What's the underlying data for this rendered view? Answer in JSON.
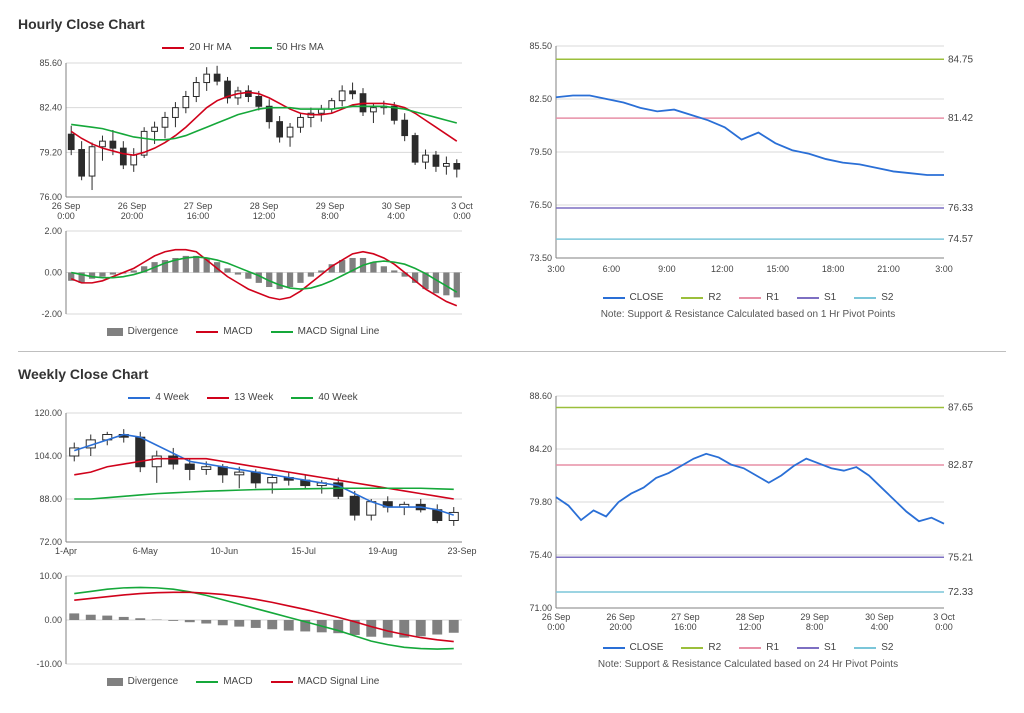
{
  "hourly": {
    "title": "Hourly Close Chart",
    "price": {
      "legend": {
        "ma20": "20 Hr MA",
        "ma50": "50 Hrs MA"
      },
      "ylim": [
        76.0,
        85.6
      ],
      "yticks": [
        "76.00",
        "79.20",
        "82.40",
        "85.60"
      ],
      "xlabels": [
        "26 Sep 0:00",
        "26 Sep 20:00",
        "27 Sep 16:00",
        "28 Sep 12:00",
        "29 Sep 8:00",
        "30 Sep 4:00",
        "3 Oct 0:00"
      ],
      "colors": {
        "candle": "#2b2b2b",
        "ma20": "#d0021b",
        "ma50": "#15a83a",
        "grid": "#d9d9d9",
        "axis": "#808080"
      },
      "candles": [
        {
          "o": 80.5,
          "h": 81.1,
          "l": 79.0,
          "c": 79.4
        },
        {
          "o": 79.4,
          "h": 80.0,
          "l": 77.2,
          "c": 77.5
        },
        {
          "o": 77.5,
          "h": 79.9,
          "l": 76.5,
          "c": 79.6
        },
        {
          "o": 79.6,
          "h": 80.4,
          "l": 78.6,
          "c": 80.0
        },
        {
          "o": 80.0,
          "h": 80.8,
          "l": 79.0,
          "c": 79.5
        },
        {
          "o": 79.5,
          "h": 80.0,
          "l": 78.0,
          "c": 78.3
        },
        {
          "o": 78.3,
          "h": 79.5,
          "l": 77.8,
          "c": 79.0
        },
        {
          "o": 79.0,
          "h": 81.0,
          "l": 78.8,
          "c": 80.7
        },
        {
          "o": 80.7,
          "h": 81.4,
          "l": 79.8,
          "c": 81.0
        },
        {
          "o": 81.0,
          "h": 82.1,
          "l": 80.2,
          "c": 81.7
        },
        {
          "o": 81.7,
          "h": 82.8,
          "l": 81.0,
          "c": 82.4
        },
        {
          "o": 82.4,
          "h": 83.6,
          "l": 82.0,
          "c": 83.2
        },
        {
          "o": 83.2,
          "h": 84.6,
          "l": 82.8,
          "c": 84.2
        },
        {
          "o": 84.2,
          "h": 85.3,
          "l": 83.6,
          "c": 84.8
        },
        {
          "o": 84.8,
          "h": 85.4,
          "l": 84.0,
          "c": 84.3
        },
        {
          "o": 84.3,
          "h": 84.6,
          "l": 82.7,
          "c": 83.1
        },
        {
          "o": 83.1,
          "h": 83.9,
          "l": 82.6,
          "c": 83.6
        },
        {
          "o": 83.6,
          "h": 84.0,
          "l": 82.8,
          "c": 83.2
        },
        {
          "o": 83.2,
          "h": 83.6,
          "l": 82.2,
          "c": 82.5
        },
        {
          "o": 82.5,
          "h": 83.0,
          "l": 80.9,
          "c": 81.4
        },
        {
          "o": 81.4,
          "h": 81.8,
          "l": 79.9,
          "c": 80.3
        },
        {
          "o": 80.3,
          "h": 81.3,
          "l": 79.6,
          "c": 81.0
        },
        {
          "o": 81.0,
          "h": 82.0,
          "l": 80.6,
          "c": 81.7
        },
        {
          "o": 81.7,
          "h": 82.4,
          "l": 81.0,
          "c": 82.0
        },
        {
          "o": 82.0,
          "h": 82.6,
          "l": 81.4,
          "c": 82.3
        },
        {
          "o": 82.3,
          "h": 83.1,
          "l": 82.0,
          "c": 82.9
        },
        {
          "o": 82.9,
          "h": 84.0,
          "l": 82.5,
          "c": 83.6
        },
        {
          "o": 83.6,
          "h": 84.2,
          "l": 83.0,
          "c": 83.4
        },
        {
          "o": 83.4,
          "h": 83.8,
          "l": 81.8,
          "c": 82.1
        },
        {
          "o": 82.1,
          "h": 82.7,
          "l": 81.3,
          "c": 82.4
        },
        {
          "o": 82.4,
          "h": 82.9,
          "l": 81.9,
          "c": 82.5
        },
        {
          "o": 82.5,
          "h": 82.8,
          "l": 81.2,
          "c": 81.5
        },
        {
          "o": 81.5,
          "h": 82.0,
          "l": 80.0,
          "c": 80.4
        },
        {
          "o": 80.4,
          "h": 80.6,
          "l": 78.3,
          "c": 78.5
        },
        {
          "o": 78.5,
          "h": 79.4,
          "l": 78.0,
          "c": 79.0
        },
        {
          "o": 79.0,
          "h": 79.3,
          "l": 77.8,
          "c": 78.2
        },
        {
          "o": 78.2,
          "h": 78.9,
          "l": 77.6,
          "c": 78.4
        },
        {
          "o": 78.4,
          "h": 78.7,
          "l": 77.4,
          "c": 78.0
        }
      ],
      "ma20": [
        80.7,
        80.2,
        79.8,
        79.5,
        79.3,
        79.1,
        79.0,
        79.2,
        79.5,
        79.9,
        80.4,
        81.0,
        81.7,
        82.4,
        82.9,
        83.2,
        83.4,
        83.5,
        83.4,
        83.1,
        82.7,
        82.3,
        82.0,
        81.9,
        81.9,
        82.0,
        82.3,
        82.6,
        82.7,
        82.7,
        82.7,
        82.6,
        82.4,
        82.0,
        81.5,
        81.0,
        80.5,
        80.0
      ],
      "ma50": [
        81.2,
        81.1,
        81.0,
        80.9,
        80.7,
        80.5,
        80.3,
        80.2,
        80.1,
        80.1,
        80.2,
        80.4,
        80.7,
        81.0,
        81.3,
        81.6,
        81.9,
        82.1,
        82.3,
        82.4,
        82.4,
        82.4,
        82.3,
        82.3,
        82.3,
        82.3,
        82.4,
        82.5,
        82.5,
        82.5,
        82.5,
        82.4,
        82.3,
        82.1,
        81.9,
        81.7,
        81.5,
        81.3
      ]
    },
    "macd": {
      "ylim": [
        -2.0,
        2.0
      ],
      "yticks": [
        "-2.00",
        "0.00",
        "2.00"
      ],
      "legend": {
        "div": "Divergence",
        "macd": "MACD",
        "signal": "MACD Signal Line"
      },
      "colors": {
        "div": "#808080",
        "macd": "#d0021b",
        "signal": "#15a83a",
        "grid": "#d9d9d9"
      },
      "hist": [
        -0.4,
        -0.5,
        -0.3,
        -0.2,
        -0.1,
        -0.05,
        0.1,
        0.3,
        0.5,
        0.6,
        0.7,
        0.8,
        0.8,
        0.7,
        0.5,
        0.2,
        -0.1,
        -0.3,
        -0.5,
        -0.7,
        -0.8,
        -0.7,
        -0.5,
        -0.2,
        0.1,
        0.4,
        0.6,
        0.7,
        0.7,
        0.5,
        0.3,
        0.1,
        -0.2,
        -0.5,
        -0.8,
        -1.0,
        -1.1,
        -1.2
      ],
      "macd": [
        -0.3,
        -0.5,
        -0.5,
        -0.4,
        -0.2,
        0.0,
        0.2,
        0.5,
        0.8,
        1.0,
        1.1,
        1.1,
        1.0,
        0.6,
        0.2,
        -0.2,
        -0.5,
        -0.8,
        -1.0,
        -1.2,
        -1.3,
        -1.2,
        -0.9,
        -0.5,
        -0.1,
        0.3,
        0.6,
        0.9,
        1.0,
        0.9,
        0.7,
        0.4,
        0.0,
        -0.4,
        -0.8,
        -1.1,
        -1.4,
        -1.6
      ],
      "signal": [
        0.0,
        -0.1,
        -0.2,
        -0.25,
        -0.25,
        -0.2,
        -0.1,
        0.05,
        0.25,
        0.45,
        0.6,
        0.7,
        0.75,
        0.7,
        0.6,
        0.45,
        0.25,
        0.05,
        -0.15,
        -0.4,
        -0.6,
        -0.75,
        -0.8,
        -0.75,
        -0.6,
        -0.4,
        -0.15,
        0.1,
        0.35,
        0.5,
        0.55,
        0.5,
        0.4,
        0.2,
        -0.05,
        -0.35,
        -0.65,
        -0.95
      ]
    },
    "sr": {
      "ylim": [
        73.5,
        85.5
      ],
      "yticks": [
        "73.50",
        "76.50",
        "79.50",
        "82.50",
        "85.50"
      ],
      "xlabels": [
        "3:00",
        "6:00",
        "9:00",
        "12:00",
        "15:00",
        "18:00",
        "21:00",
        "3:00"
      ],
      "levels": [
        {
          "name": "R2",
          "value": 84.75,
          "color": "#9bbf3b"
        },
        {
          "name": "R1",
          "value": 81.42,
          "color": "#e78fa6"
        },
        {
          "name": "S1",
          "value": 76.33,
          "color": "#7d6fc2"
        },
        {
          "name": "S2",
          "value": 74.57,
          "color": "#7bc6d9"
        }
      ],
      "close_color": "#2a6fd6",
      "close": [
        82.6,
        82.7,
        82.7,
        82.5,
        82.3,
        82.0,
        81.8,
        81.9,
        81.6,
        81.3,
        80.9,
        80.2,
        80.6,
        80.0,
        79.6,
        79.4,
        79.1,
        78.9,
        78.8,
        78.6,
        78.4,
        78.3,
        78.2,
        78.2
      ],
      "legend": {
        "close": "CLOSE",
        "r2": "R2",
        "r1": "R1",
        "s1": "S1",
        "s2": "S2"
      },
      "note": "Note: Support & Resistance Calculated based on 1 Hr Pivot Points"
    }
  },
  "weekly": {
    "title": "Weekly Close Chart",
    "price": {
      "legend": {
        "w4": "4 Week",
        "w13": "13 Week",
        "w40": "40 Week"
      },
      "ylim": [
        72.0,
        120.0
      ],
      "yticks": [
        "72.00",
        "88.00",
        "104.00",
        "120.00"
      ],
      "xlabels": [
        "1-Apr",
        "6-May",
        "10-Jun",
        "15-Jul",
        "19-Aug",
        "23-Sep"
      ],
      "colors": {
        "candle": "#2b2b2b",
        "w4": "#2a6fd6",
        "w13": "#d0021b",
        "w40": "#15a83a",
        "grid": "#d9d9d9"
      },
      "candles": [
        {
          "o": 104,
          "h": 109,
          "l": 102,
          "c": 107
        },
        {
          "o": 107,
          "h": 112,
          "l": 104,
          "c": 110
        },
        {
          "o": 110,
          "h": 113,
          "l": 108,
          "c": 112
        },
        {
          "o": 112,
          "h": 114,
          "l": 109,
          "c": 111
        },
        {
          "o": 111,
          "h": 113,
          "l": 98,
          "c": 100
        },
        {
          "o": 100,
          "h": 106,
          "l": 94,
          "c": 104
        },
        {
          "o": 104,
          "h": 107,
          "l": 99,
          "c": 101
        },
        {
          "o": 101,
          "h": 103,
          "l": 95,
          "c": 99
        },
        {
          "o": 99,
          "h": 102,
          "l": 97,
          "c": 100
        },
        {
          "o": 100,
          "h": 101,
          "l": 94,
          "c": 97
        },
        {
          "o": 97,
          "h": 100,
          "l": 92,
          "c": 98
        },
        {
          "o": 98,
          "h": 99,
          "l": 92,
          "c": 94
        },
        {
          "o": 94,
          "h": 97,
          "l": 90,
          "c": 96
        },
        {
          "o": 96,
          "h": 98,
          "l": 93,
          "c": 95
        },
        {
          "o": 95,
          "h": 97,
          "l": 92,
          "c": 93
        },
        {
          "o": 93,
          "h": 95,
          "l": 90,
          "c": 94
        },
        {
          "o": 94,
          "h": 96,
          "l": 88,
          "c": 89
        },
        {
          "o": 89,
          "h": 91,
          "l": 80,
          "c": 82
        },
        {
          "o": 82,
          "h": 88,
          "l": 80,
          "c": 87
        },
        {
          "o": 87,
          "h": 89,
          "l": 83,
          "c": 85
        },
        {
          "o": 85,
          "h": 87,
          "l": 82,
          "c": 86
        },
        {
          "o": 86,
          "h": 88,
          "l": 83,
          "c": 84
        },
        {
          "o": 84,
          "h": 86,
          "l": 79,
          "c": 80
        },
        {
          "o": 80,
          "h": 85,
          "l": 78,
          "c": 83
        }
      ],
      "w4": [
        106,
        108,
        110,
        112,
        111,
        108,
        105,
        102,
        101,
        100,
        99,
        98,
        97,
        96,
        95,
        94,
        93,
        90,
        87,
        85,
        85,
        85,
        84,
        82
      ],
      "w13": [
        97,
        98,
        100,
        101,
        102,
        103,
        103,
        103,
        103,
        102,
        101,
        100,
        99,
        98,
        97,
        96,
        95,
        94,
        93,
        92,
        91,
        90,
        89,
        88
      ],
      "w40": [
        88,
        88,
        88.5,
        89,
        89.5,
        90,
        90.3,
        90.6,
        90.9,
        91.1,
        91.3,
        91.5,
        91.6,
        91.7,
        91.8,
        91.9,
        92,
        92,
        92,
        92,
        92,
        92,
        91.8,
        91.6
      ]
    },
    "macd": {
      "ylim": [
        -10.0,
        10.0
      ],
      "yticks": [
        "-10.00",
        "0.00",
        "10.00"
      ],
      "legend": {
        "div": "Divergence",
        "macd": "MACD",
        "signal": "MACD Signal Line"
      },
      "colors": {
        "div": "#808080",
        "macd": "#15a83a",
        "signal": "#d0021b"
      },
      "hist": [
        1.5,
        1.2,
        1.0,
        0.7,
        0.4,
        0.1,
        -0.2,
        -0.5,
        -0.8,
        -1.2,
        -1.5,
        -1.8,
        -2.1,
        -2.4,
        -2.6,
        -2.8,
        -3.0,
        -3.4,
        -3.8,
        -4.0,
        -4.0,
        -3.7,
        -3.3,
        -2.9
      ],
      "macd": [
        6.0,
        6.5,
        7.0,
        7.3,
        7.4,
        7.3,
        7.0,
        6.4,
        5.6,
        4.6,
        3.6,
        2.6,
        1.6,
        0.6,
        -0.4,
        -1.4,
        -2.4,
        -3.6,
        -4.8,
        -5.6,
        -6.2,
        -6.5,
        -6.6,
        -6.5
      ],
      "signal": [
        4.5,
        4.9,
        5.3,
        5.7,
        6.0,
        6.2,
        6.3,
        6.3,
        6.1,
        5.8,
        5.3,
        4.7,
        4.0,
        3.2,
        2.4,
        1.5,
        0.6,
        -0.4,
        -1.5,
        -2.5,
        -3.3,
        -4.0,
        -4.5,
        -4.9
      ]
    },
    "sr": {
      "ylim": [
        71.0,
        88.6
      ],
      "yticks": [
        "71.00",
        "75.40",
        "79.80",
        "84.20",
        "88.60"
      ],
      "xlabels": [
        "26 Sep 0:00",
        "26 Sep 20:00",
        "27 Sep 16:00",
        "28 Sep 12:00",
        "29 Sep 8:00",
        "30 Sep 4:00",
        "3 Oct 0:00"
      ],
      "levels": [
        {
          "name": "R2",
          "value": 87.65,
          "color": "#9bbf3b"
        },
        {
          "name": "R1",
          "value": 82.87,
          "color": "#e78fa6"
        },
        {
          "name": "S1",
          "value": 75.21,
          "color": "#7d6fc2"
        },
        {
          "name": "S2",
          "value": 72.33,
          "color": "#7bc6d9"
        }
      ],
      "close_color": "#2a6fd6",
      "close": [
        80.2,
        79.5,
        78.3,
        79.1,
        78.6,
        79.8,
        80.5,
        81.0,
        81.8,
        82.2,
        82.8,
        83.4,
        83.8,
        83.5,
        82.9,
        82.6,
        82.0,
        81.4,
        82.0,
        82.8,
        83.4,
        83.0,
        82.6,
        82.4,
        82.7,
        82.0,
        81.0,
        80.0,
        79.0,
        78.2,
        78.5,
        78.0
      ],
      "legend": {
        "close": "CLOSE",
        "r2": "R2",
        "r1": "R1",
        "s1": "S1",
        "s2": "S2"
      },
      "note": "Note:  Support & Resistance Calculated based on 24 Hr Pivot Points"
    }
  }
}
